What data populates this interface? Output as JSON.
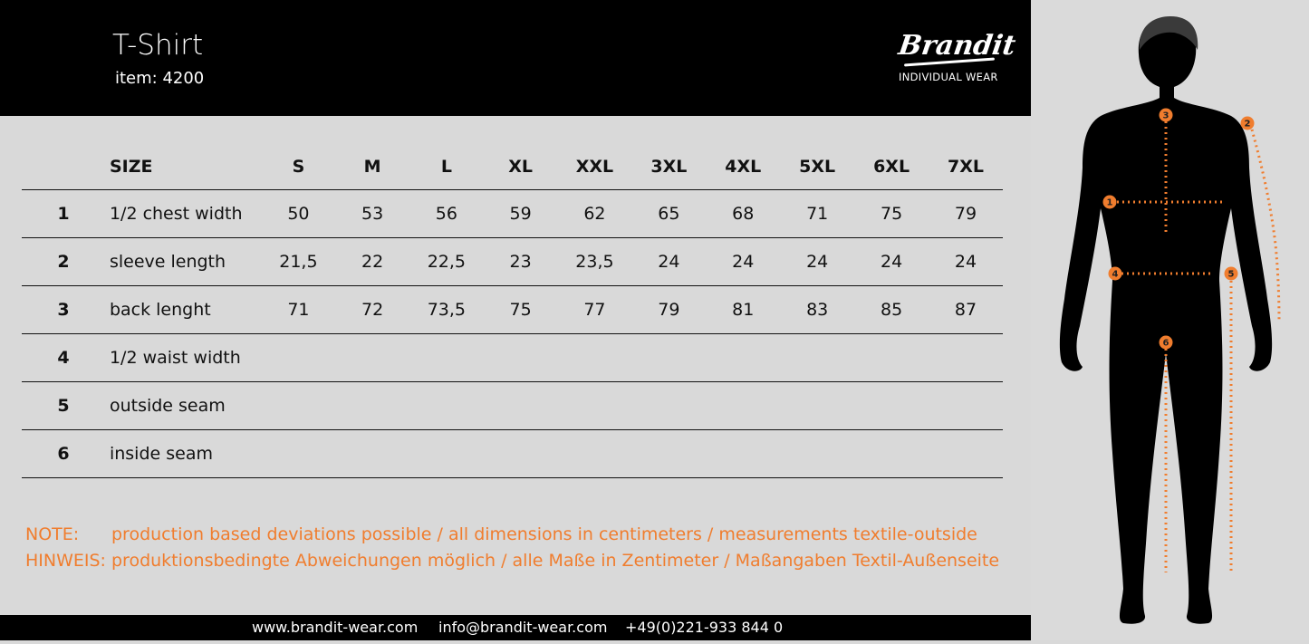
{
  "header": {
    "title": "T-Shirt",
    "item": "item: 4200"
  },
  "logo": {
    "brand": "Brandit",
    "tagline": "INDIVIDUAL WEAR"
  },
  "table": {
    "size_header": "SIZE",
    "sizes": [
      "S",
      "M",
      "L",
      "XL",
      "XXL",
      "3XL",
      "4XL",
      "5XL",
      "6XL",
      "7XL"
    ],
    "rows": [
      {
        "num": "1",
        "label": "1/2 chest width",
        "values": [
          "50",
          "53",
          "56",
          "59",
          "62",
          "65",
          "68",
          "71",
          "75",
          "79"
        ]
      },
      {
        "num": "2",
        "label": "sleeve length",
        "values": [
          "21,5",
          "22",
          "22,5",
          "23",
          "23,5",
          "24",
          "24",
          "24",
          "24",
          "24"
        ]
      },
      {
        "num": "3",
        "label": "back lenght",
        "values": [
          "71",
          "72",
          "73,5",
          "75",
          "77",
          "79",
          "81",
          "83",
          "85",
          "87"
        ]
      },
      {
        "num": "4",
        "label": "1/2 waist width",
        "values": [
          "",
          "",
          "",
          "",
          "",
          "",
          "",
          "",
          "",
          ""
        ]
      },
      {
        "num": "5",
        "label": "outside seam",
        "values": [
          "",
          "",
          "",
          "",
          "",
          "",
          "",
          "",
          "",
          ""
        ]
      },
      {
        "num": "6",
        "label": "inside seam",
        "values": [
          "",
          "",
          "",
          "",
          "",
          "",
          "",
          "",
          "",
          ""
        ]
      }
    ]
  },
  "notes": [
    {
      "key": "NOTE:",
      "text": "production based deviations possible / all dimensions in centimeters / measurements textile-outside"
    },
    {
      "key": "HINWEIS:",
      "text": "produktionsbedingte Abweichungen möglich / alle Maße in Zentimeter / Maßangaben Textil-Außenseite"
    }
  ],
  "footer": {
    "website": "www.brandit-wear.com",
    "email": "info@brandit-wear.com",
    "phone": "+49(0)221-933 844 0"
  },
  "figure": {
    "markers": [
      "1",
      "2",
      "3",
      "4",
      "5",
      "6"
    ]
  },
  "colors": {
    "accent": "#f07d2e",
    "header_bg": "#000000",
    "background": "#d9d9d9"
  }
}
